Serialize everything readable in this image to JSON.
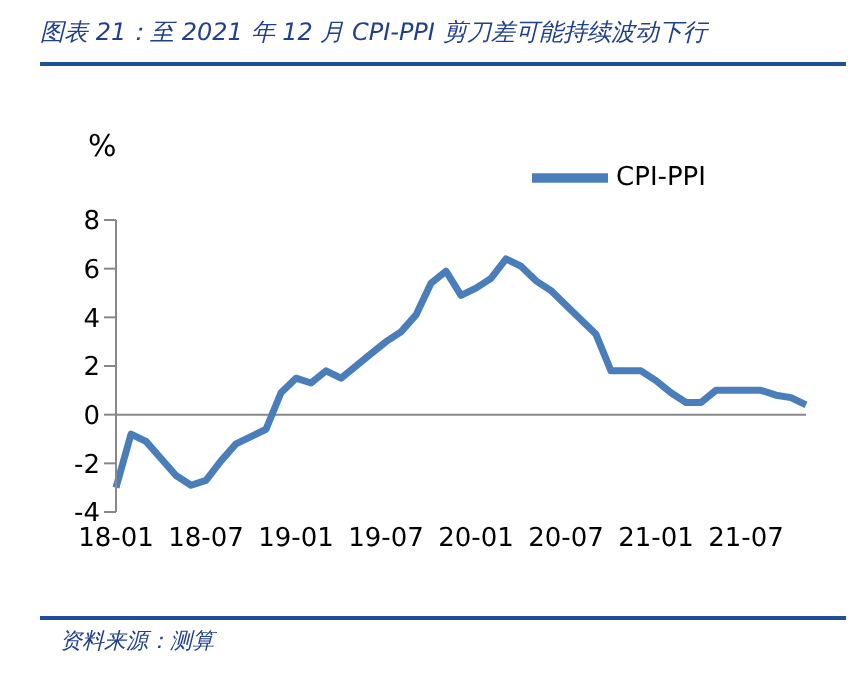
{
  "chart_data": {
    "type": "line",
    "title": "图表 21：至 2021 年 12 月 CPI-PPI 剪刀差可能持续波动下行",
    "ylabel": "%",
    "categories": [
      "18-01",
      null,
      null,
      null,
      null,
      null,
      "18-07",
      null,
      null,
      null,
      null,
      null,
      "19-01",
      null,
      null,
      null,
      null,
      null,
      "19-07",
      null,
      null,
      null,
      null,
      null,
      "20-01",
      null,
      null,
      null,
      null,
      null,
      "20-07",
      null,
      null,
      null,
      null,
      null,
      "21-01",
      null,
      null,
      null,
      null,
      null,
      "21-07",
      null,
      null,
      null,
      null
    ],
    "series": [
      {
        "name": "CPI-PPI",
        "color": "#4a7ebb",
        "values": [
          -3.0,
          -0.8,
          -1.1,
          -1.8,
          -2.5,
          -2.9,
          -2.7,
          -1.9,
          -1.2,
          -0.9,
          -0.6,
          0.9,
          1.5,
          1.3,
          1.8,
          1.5,
          2.0,
          2.5,
          3.0,
          3.4,
          4.1,
          5.4,
          5.9,
          4.9,
          5.2,
          5.6,
          6.4,
          6.1,
          5.5,
          5.1,
          4.5,
          3.9,
          3.3,
          1.8,
          1.8,
          1.8,
          1.4,
          0.9,
          0.5,
          0.5,
          1.0,
          1.0,
          1.0,
          1.0,
          0.8,
          0.7,
          0.4
        ]
      }
    ],
    "ylim": [
      -4,
      8
    ],
    "yticks": [
      -4,
      -2,
      0,
      2,
      4,
      6,
      8
    ],
    "ref_lines": [
      {
        "axis": "y",
        "value": 0,
        "color": "#888888"
      }
    ],
    "legend": "top right",
    "marker": "none",
    "line_style": "solid",
    "annotations": [
      "资料来源：测算"
    ]
  }
}
